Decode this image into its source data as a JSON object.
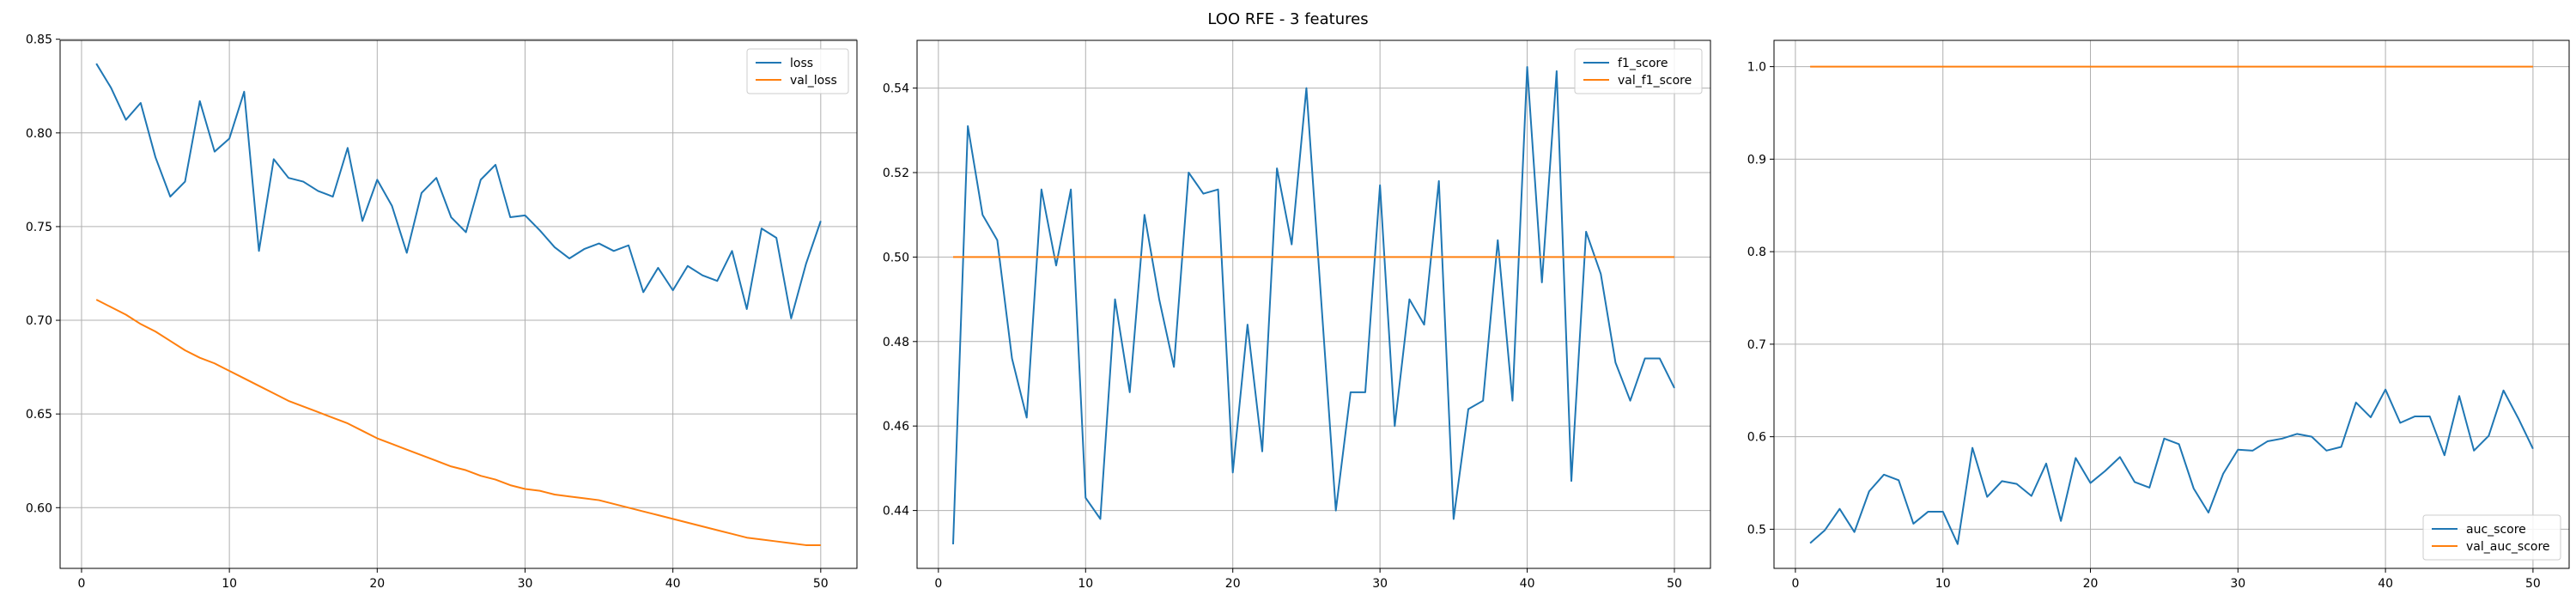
{
  "figure": {
    "suptitle": "LOO RFE - 3 features"
  },
  "colors": {
    "series_1": "#1f77b4",
    "series_2": "#ff7f0e",
    "grid": "#b0b0b0",
    "axes": "#000000"
  },
  "chart_data": [
    {
      "type": "line",
      "title": "",
      "xlabel": "",
      "ylabel": "",
      "xlim": [
        -1.45,
        52.45
      ],
      "ylim": [
        0.5676,
        0.8494
      ],
      "xticks": [
        0,
        10,
        20,
        30,
        40,
        50
      ],
      "yticks": [
        0.6,
        0.65,
        0.7,
        0.75,
        0.8,
        0.85
      ],
      "ytick_labels": [
        "0.60",
        "0.65",
        "0.70",
        "0.75",
        "0.80",
        "0.85"
      ],
      "grid": true,
      "legend_position": "upper right",
      "x": [
        1,
        2,
        3,
        4,
        5,
        6,
        7,
        8,
        9,
        10,
        11,
        12,
        13,
        14,
        15,
        16,
        17,
        18,
        19,
        20,
        21,
        22,
        23,
        24,
        25,
        26,
        27,
        28,
        29,
        30,
        31,
        32,
        33,
        34,
        35,
        36,
        37,
        38,
        39,
        40,
        41,
        42,
        43,
        44,
        45,
        46,
        47,
        48,
        49,
        50
      ],
      "series": [
        {
          "name": "loss",
          "color_key": "series_1",
          "values": [
            0.837,
            0.824,
            0.807,
            0.816,
            0.787,
            0.766,
            0.774,
            0.817,
            0.79,
            0.797,
            0.822,
            0.737,
            0.786,
            0.776,
            0.774,
            0.769,
            0.766,
            0.792,
            0.753,
            0.775,
            0.761,
            0.736,
            0.768,
            0.776,
            0.755,
            0.747,
            0.775,
            0.783,
            0.755,
            0.756,
            0.748,
            0.739,
            0.733,
            0.738,
            0.741,
            0.737,
            0.74,
            0.715,
            0.728,
            0.716,
            0.729,
            0.724,
            0.721,
            0.737,
            0.706,
            0.749,
            0.744,
            0.701,
            0.73,
            0.753
          ]
        },
        {
          "name": "val_loss",
          "color_key": "series_2",
          "values": [
            0.711,
            0.707,
            0.703,
            0.698,
            0.694,
            0.689,
            0.684,
            0.68,
            0.677,
            0.673,
            0.669,
            0.665,
            0.661,
            0.657,
            0.654,
            0.651,
            0.648,
            0.645,
            0.641,
            0.637,
            0.634,
            0.631,
            0.628,
            0.625,
            0.622,
            0.62,
            0.617,
            0.615,
            0.612,
            0.61,
            0.609,
            0.607,
            0.606,
            0.605,
            0.604,
            0.602,
            0.6,
            0.598,
            0.596,
            0.594,
            0.592,
            0.59,
            0.588,
            0.586,
            0.584,
            0.583,
            0.582,
            0.581,
            0.58,
            0.58
          ]
        }
      ]
    },
    {
      "type": "line",
      "title": "",
      "xlabel": "",
      "ylabel": "",
      "xlim": [
        -1.45,
        52.45
      ],
      "ylim": [
        0.4263,
        0.5513
      ],
      "xticks": [
        0,
        10,
        20,
        30,
        40,
        50
      ],
      "yticks": [
        0.44,
        0.46,
        0.48,
        0.5,
        0.52,
        0.54
      ],
      "ytick_labels": [
        "0.44",
        "0.46",
        "0.48",
        "0.50",
        "0.52",
        "0.54"
      ],
      "grid": true,
      "legend_position": "upper right",
      "x": [
        1,
        2,
        3,
        4,
        5,
        6,
        7,
        8,
        9,
        10,
        11,
        12,
        13,
        14,
        15,
        16,
        17,
        18,
        19,
        20,
        21,
        22,
        23,
        24,
        25,
        26,
        27,
        28,
        29,
        30,
        31,
        32,
        33,
        34,
        35,
        36,
        37,
        38,
        39,
        40,
        41,
        42,
        43,
        44,
        45,
        46,
        47,
        48,
        49,
        50
      ],
      "series": [
        {
          "name": "f1_score",
          "color_key": "series_1",
          "values": [
            0.432,
            0.531,
            0.51,
            0.504,
            0.476,
            0.462,
            0.516,
            0.498,
            0.516,
            0.443,
            0.438,
            0.49,
            0.468,
            0.51,
            0.49,
            0.474,
            0.52,
            0.515,
            0.516,
            0.449,
            0.484,
            0.454,
            0.521,
            0.503,
            0.54,
            0.49,
            0.44,
            0.468,
            0.468,
            0.517,
            0.46,
            0.49,
            0.484,
            0.518,
            0.438,
            0.464,
            0.466,
            0.504,
            0.466,
            0.545,
            0.494,
            0.544,
            0.447,
            0.506,
            0.496,
            0.475,
            0.466,
            0.476,
            0.476,
            0.469
          ]
        },
        {
          "name": "val_f1_score",
          "color_key": "series_2",
          "values": [
            0.5,
            0.5,
            0.5,
            0.5,
            0.5,
            0.5,
            0.5,
            0.5,
            0.5,
            0.5,
            0.5,
            0.5,
            0.5,
            0.5,
            0.5,
            0.5,
            0.5,
            0.5,
            0.5,
            0.5,
            0.5,
            0.5,
            0.5,
            0.5,
            0.5,
            0.5,
            0.5,
            0.5,
            0.5,
            0.5,
            0.5,
            0.5,
            0.5,
            0.5,
            0.5,
            0.5,
            0.5,
            0.5,
            0.5,
            0.5,
            0.5,
            0.5,
            0.5,
            0.5,
            0.5,
            0.5,
            0.5,
            0.5,
            0.5,
            0.5
          ]
        }
      ]
    },
    {
      "type": "line",
      "title": "",
      "xlabel": "",
      "ylabel": "",
      "xlim": [
        -1.45,
        52.45
      ],
      "ylim": [
        0.4577,
        1.0284
      ],
      "xticks": [
        0,
        10,
        20,
        30,
        40,
        50
      ],
      "yticks": [
        0.5,
        0.6,
        0.7,
        0.8,
        0.9,
        1.0
      ],
      "ytick_labels": [
        "0.5",
        "0.6",
        "0.7",
        "0.8",
        "0.9",
        "1.0"
      ],
      "grid": true,
      "legend_position": "lower right",
      "x": [
        1,
        2,
        3,
        4,
        5,
        6,
        7,
        8,
        9,
        10,
        11,
        12,
        13,
        14,
        15,
        16,
        17,
        18,
        19,
        20,
        21,
        22,
        23,
        24,
        25,
        26,
        27,
        28,
        29,
        30,
        31,
        32,
        33,
        34,
        35,
        36,
        37,
        38,
        39,
        40,
        41,
        42,
        43,
        44,
        45,
        46,
        47,
        48,
        49,
        50
      ],
      "series": [
        {
          "name": "auc_score",
          "color_key": "series_1",
          "values": [
            0.485,
            0.499,
            0.522,
            0.497,
            0.541,
            0.559,
            0.553,
            0.506,
            0.519,
            0.519,
            0.484,
            0.588,
            0.535,
            0.552,
            0.549,
            0.536,
            0.571,
            0.509,
            0.577,
            0.55,
            0.563,
            0.578,
            0.551,
            0.545,
            0.598,
            0.592,
            0.544,
            0.518,
            0.56,
            0.586,
            0.585,
            0.595,
            0.598,
            0.603,
            0.6,
            0.585,
            0.589,
            0.637,
            0.621,
            0.651,
            0.615,
            0.622,
            0.622,
            0.58,
            0.644,
            0.585,
            0.601,
            0.65,
            0.62,
            0.587
          ]
        },
        {
          "name": "val_auc_score",
          "color_key": "series_2",
          "values": [
            1,
            1,
            1,
            1,
            1,
            1,
            1,
            1,
            1,
            1,
            1,
            1,
            1,
            1,
            1,
            1,
            1,
            1,
            1,
            1,
            1,
            1,
            1,
            1,
            1,
            1,
            1,
            1,
            1,
            1,
            1,
            1,
            1,
            1,
            1,
            1,
            1,
            1,
            1,
            1,
            1,
            1,
            1,
            1,
            1,
            1,
            1,
            1,
            1,
            1
          ]
        }
      ]
    }
  ]
}
